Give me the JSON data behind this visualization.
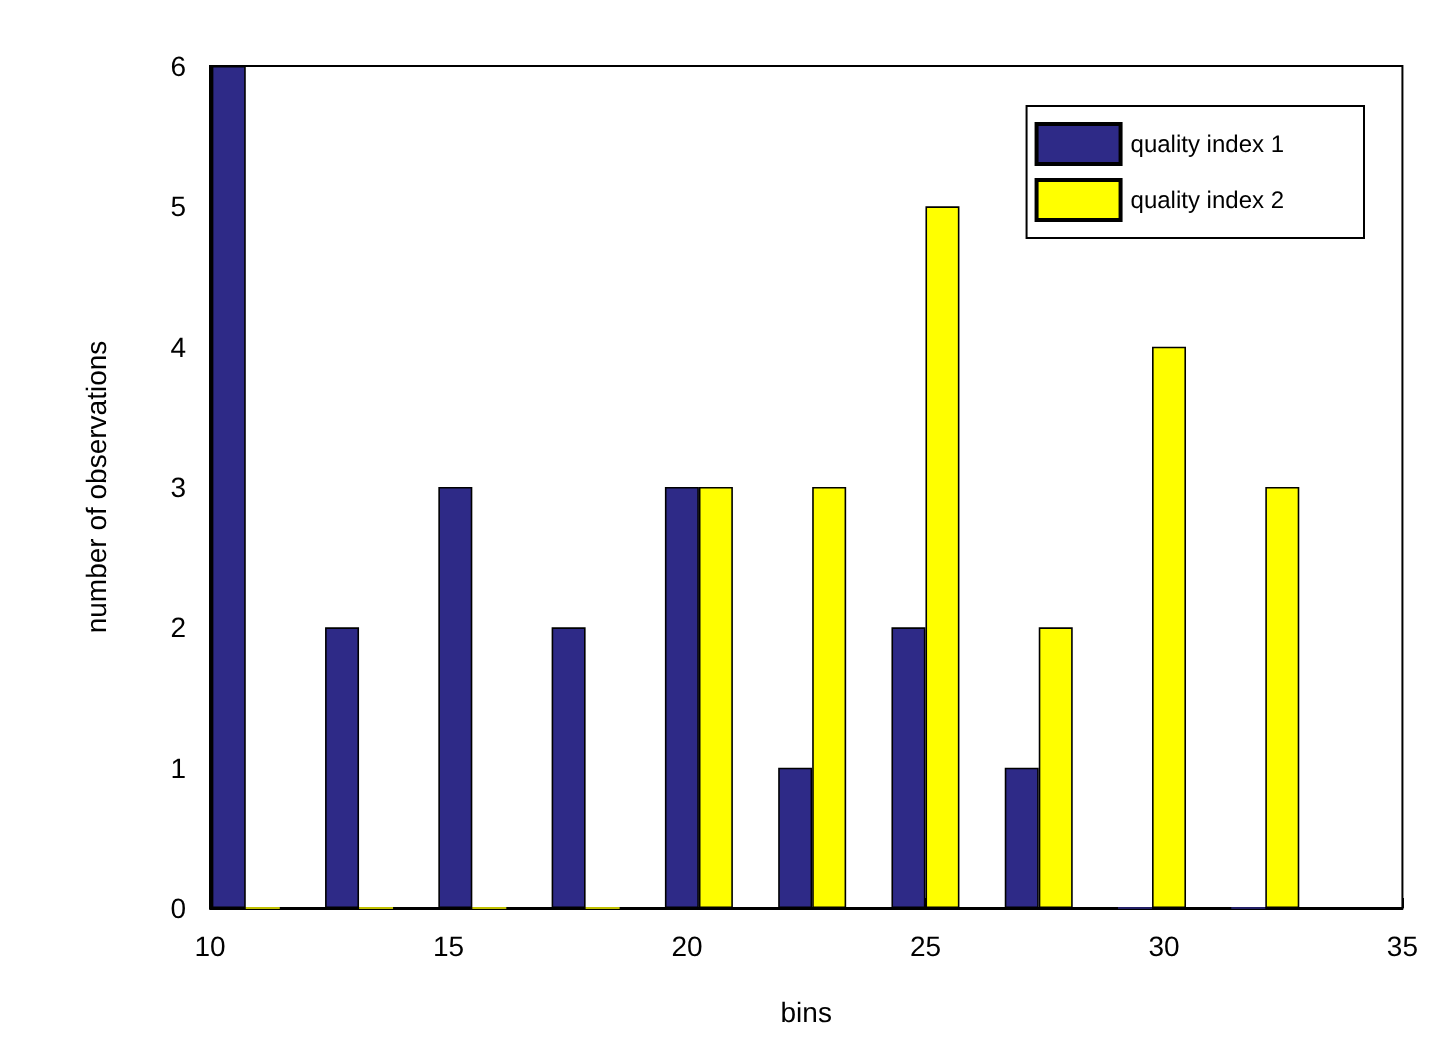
{
  "chart_data": {
    "type": "bar",
    "xlabel": "bins",
    "ylabel": "number of observations",
    "x": [
      10.75,
      13.125,
      15.5,
      17.875,
      20.25,
      22.625,
      25,
      27.375,
      29.75,
      32.125
    ],
    "series": [
      {
        "name": "quality index 1",
        "color": "#2e2a87",
        "values": [
          6,
          2,
          3,
          2,
          3,
          1,
          2,
          1,
          0,
          0
        ]
      },
      {
        "name": "quality index 2",
        "color": "#ffff00",
        "values": [
          0,
          0,
          0,
          0,
          3,
          3,
          5,
          2,
          4,
          3
        ]
      }
    ],
    "xlim": [
      10,
      35
    ],
    "xticks": [
      10,
      15,
      20,
      25,
      30,
      35
    ],
    "ylim": [
      0,
      6
    ],
    "yticks": [
      0,
      1,
      2,
      3,
      4,
      5,
      6
    ],
    "grid": false,
    "legend": "top right"
  }
}
